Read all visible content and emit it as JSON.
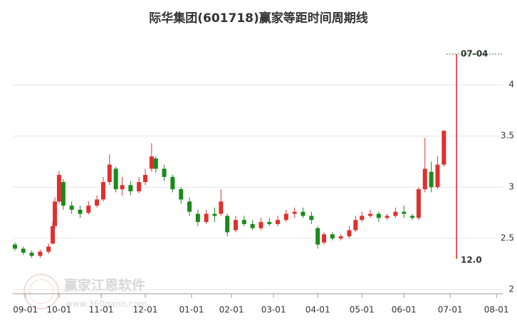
{
  "chart_data": {
    "type": "candlestick",
    "title": "际华集团(601718)赢家等距时间周期线",
    "watermark": "赢家江恩软件",
    "watermark_url": "www.360gann.com",
    "up_color": "#e0302e",
    "down_color": "#1a8a1a",
    "grid": true,
    "xlim": [
      0,
      233
    ],
    "ylim": [
      1.96,
      4.55
    ],
    "yticks": [
      2,
      2.5,
      3,
      3.5,
      4
    ],
    "xticks": [
      {
        "value": 6,
        "label": "09-01"
      },
      {
        "value": 22,
        "label": "10-01"
      },
      {
        "value": 42,
        "label": "11-01"
      },
      {
        "value": 63,
        "label": "12-01"
      },
      {
        "value": 85,
        "label": "01-01"
      },
      {
        "value": 104,
        "label": "02-01"
      },
      {
        "value": 124,
        "label": "03-01"
      },
      {
        "value": 145,
        "label": "04-01"
      },
      {
        "value": 166,
        "label": "05-01"
      },
      {
        "value": 186,
        "label": "06-01"
      },
      {
        "value": 208,
        "label": "07-01"
      },
      {
        "value": 230,
        "label": "08-01"
      }
    ],
    "x": [
      1,
      5,
      9,
      13,
      17,
      19,
      20,
      22,
      24,
      28,
      32,
      36,
      40,
      43,
      46,
      49,
      52,
      56,
      60,
      63,
      66,
      68,
      72,
      76,
      80,
      84,
      88,
      92,
      96,
      99,
      102,
      106,
      110,
      114,
      118,
      122,
      126,
      130,
      134,
      138,
      142,
      145,
      148,
      152,
      156,
      160,
      163,
      166,
      170,
      174,
      178,
      182,
      186,
      190,
      193,
      196,
      199,
      202,
      205
    ],
    "open": [
      2.44,
      2.4,
      2.36,
      2.33,
      2.37,
      2.45,
      2.62,
      2.86,
      3.05,
      2.82,
      2.78,
      2.75,
      2.82,
      2.88,
      3.05,
      3.18,
      2.98,
      3.02,
      2.96,
      3.05,
      3.18,
      3.28,
      3.18,
      3.1,
      2.98,
      2.86,
      2.74,
      2.66,
      2.74,
      2.74,
      2.72,
      2.58,
      2.68,
      2.64,
      2.6,
      2.66,
      2.64,
      2.68,
      2.74,
      2.76,
      2.72,
      2.6,
      2.46,
      2.54,
      2.5,
      2.52,
      2.58,
      2.68,
      2.72,
      2.74,
      2.7,
      2.72,
      2.76,
      2.72,
      2.7,
      2.98,
      3.15,
      3.0,
      3.22
    ],
    "close": [
      2.4,
      2.36,
      2.33,
      2.37,
      2.42,
      2.62,
      2.86,
      3.12,
      2.82,
      2.78,
      2.74,
      2.82,
      2.88,
      3.05,
      3.22,
      2.98,
      3.02,
      2.96,
      3.05,
      3.12,
      3.3,
      3.18,
      3.1,
      2.98,
      2.88,
      2.76,
      2.66,
      2.74,
      2.72,
      2.86,
      2.56,
      2.68,
      2.64,
      2.6,
      2.66,
      2.64,
      2.68,
      2.74,
      2.76,
      2.72,
      2.68,
      2.44,
      2.54,
      2.5,
      2.52,
      2.58,
      2.68,
      2.72,
      2.74,
      2.7,
      2.72,
      2.76,
      2.74,
      2.7,
      2.98,
      3.18,
      3.0,
      3.22,
      3.55
    ],
    "high": [
      2.46,
      2.42,
      2.38,
      2.39,
      2.45,
      2.66,
      2.9,
      3.16,
      3.08,
      2.86,
      2.82,
      2.86,
      2.92,
      3.1,
      3.32,
      3.2,
      3.1,
      3.06,
      3.1,
      3.18,
      3.43,
      3.3,
      3.22,
      3.12,
      3.0,
      2.9,
      2.78,
      2.78,
      2.8,
      2.98,
      2.74,
      2.72,
      2.72,
      2.68,
      2.7,
      2.7,
      2.72,
      2.78,
      2.8,
      2.8,
      2.76,
      2.62,
      2.56,
      2.56,
      2.54,
      2.62,
      2.72,
      2.76,
      2.78,
      2.76,
      2.74,
      2.8,
      2.82,
      2.74,
      3.0,
      3.48,
      3.25,
      3.3,
      3.56
    ],
    "low": [
      2.38,
      2.34,
      2.31,
      2.31,
      2.35,
      2.44,
      2.6,
      2.84,
      2.78,
      2.74,
      2.7,
      2.73,
      2.8,
      2.86,
      3.02,
      2.95,
      2.92,
      2.92,
      2.94,
      3.02,
      3.15,
      3.14,
      3.06,
      2.95,
      2.84,
      2.72,
      2.62,
      2.64,
      2.66,
      2.72,
      2.52,
      2.56,
      2.62,
      2.58,
      2.58,
      2.62,
      2.62,
      2.66,
      2.7,
      2.7,
      2.64,
      2.4,
      2.44,
      2.48,
      2.48,
      2.5,
      2.56,
      2.66,
      2.7,
      2.66,
      2.68,
      2.7,
      2.7,
      2.68,
      2.68,
      2.95,
      2.95,
      2.98,
      3.2
    ],
    "marker": {
      "x": 211,
      "top": 4.3,
      "bottom": 2.3,
      "top_label": "07-04",
      "bottom_label": "12.0",
      "color": "#e02020"
    }
  }
}
